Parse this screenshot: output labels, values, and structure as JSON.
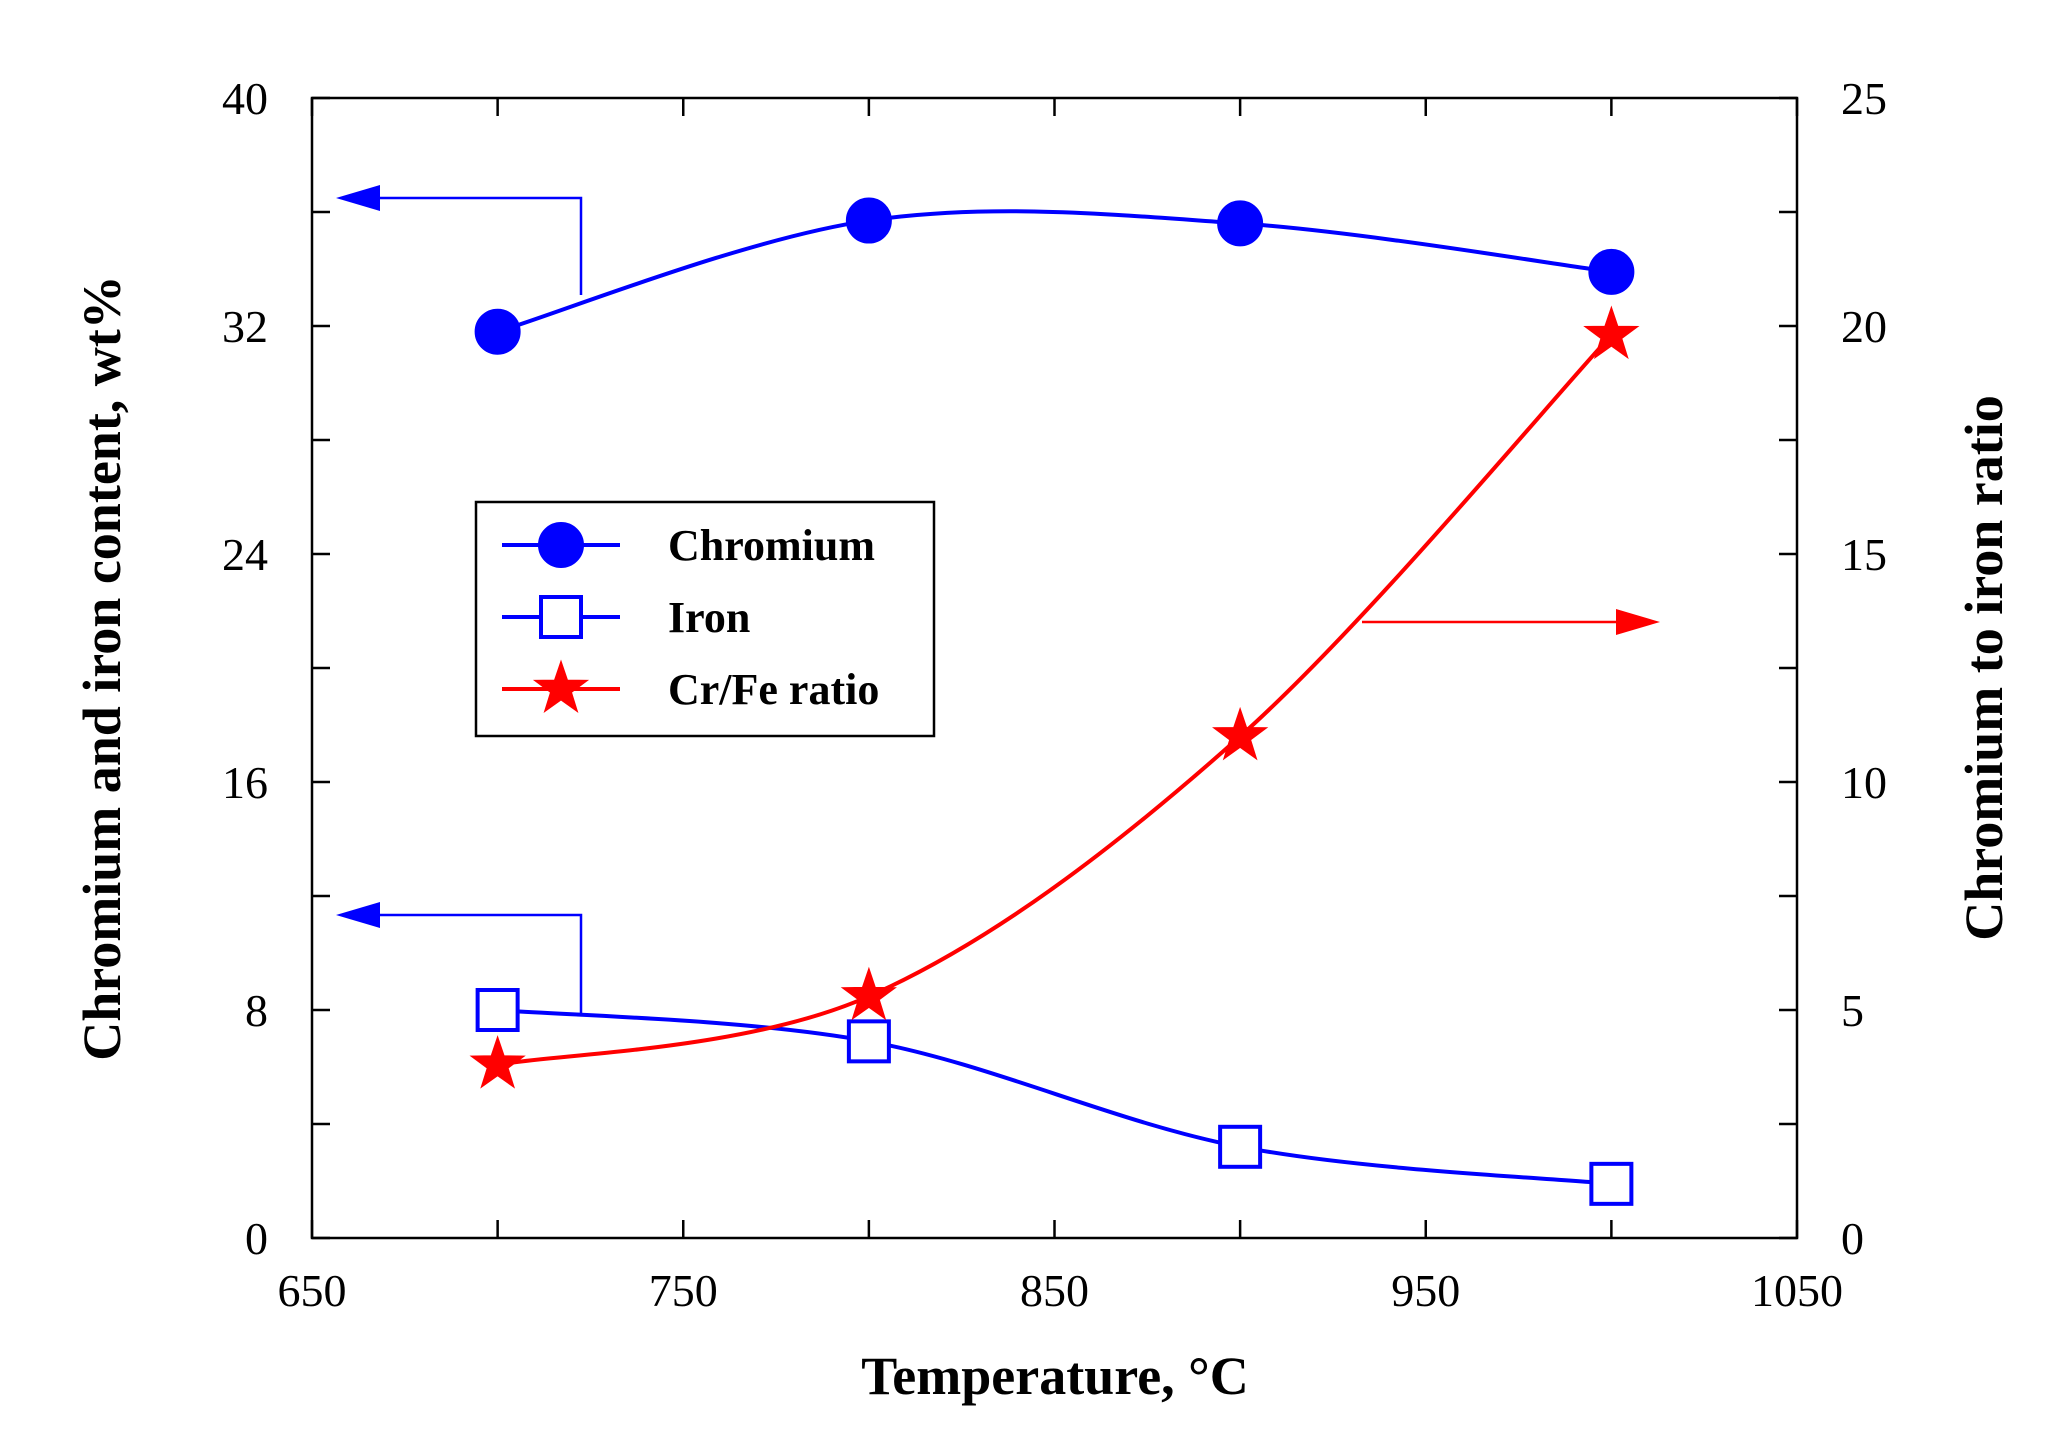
{
  "chart_data": {
    "type": "line",
    "xlabel": "Temperature, °C",
    "ylabel_left": "Chromium and iron content, wt%",
    "ylabel_right": "Chromium to iron ratio",
    "xlim": [
      650,
      1050
    ],
    "ylim_left": [
      0,
      40
    ],
    "ylim_right": [
      0,
      25
    ],
    "x_ticks": [
      "650",
      "750",
      "850",
      "950",
      "1050"
    ],
    "y_left_ticks": [
      "0",
      "8",
      "16",
      "24",
      "32",
      "40"
    ],
    "y_right_ticks": [
      "0",
      "5",
      "10",
      "15",
      "20",
      "25"
    ],
    "grid": false,
    "legend_position": "center-left",
    "x": [
      700,
      800,
      900,
      1000
    ],
    "series": [
      {
        "name": "Chromium",
        "axis": "left",
        "color": "#0000ff",
        "marker": "filled-circle",
        "values": [
          31.8,
          35.7,
          35.6,
          33.9
        ]
      },
      {
        "name": "Iron",
        "axis": "left",
        "color": "#0000ff",
        "marker": "open-square",
        "values": [
          8.0,
          6.9,
          3.2,
          1.9
        ]
      },
      {
        "name": "Cr/Fe ratio",
        "axis": "right",
        "color": "#ff0000",
        "marker": "filled-star",
        "values": [
          3.8,
          5.3,
          11.0,
          19.8
        ]
      }
    ],
    "annotations": [
      {
        "type": "arrow",
        "series": "Chromium",
        "points_to": "left-axis"
      },
      {
        "type": "arrow",
        "series": "Iron",
        "points_to": "left-axis"
      },
      {
        "type": "arrow",
        "series": "Cr/Fe ratio",
        "points_to": "right-axis"
      }
    ]
  }
}
